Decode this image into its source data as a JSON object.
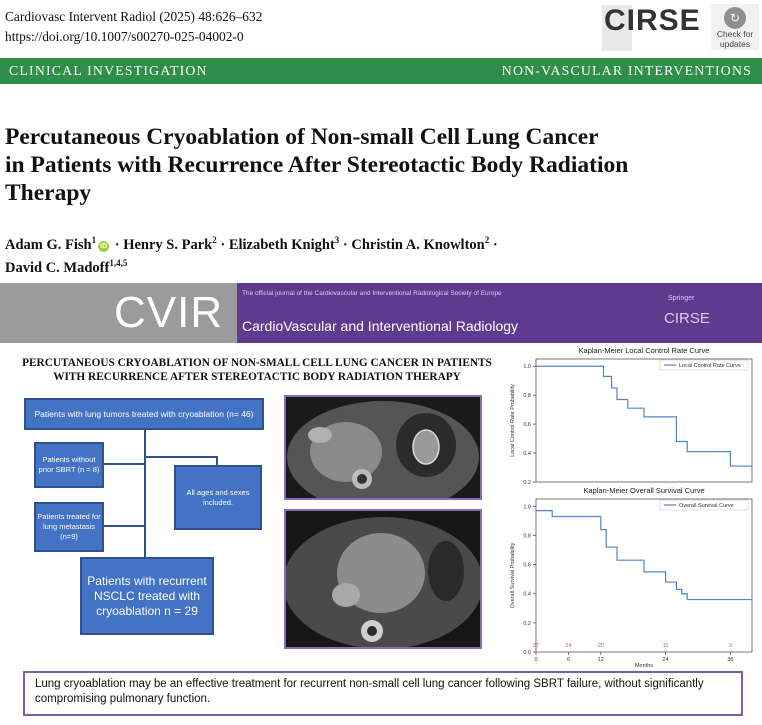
{
  "header": {
    "citation": "Cardiovasc Intervent Radiol (2025) 48:626–632",
    "doi": "https://doi.org/10.1007/s00270-025-04002-0",
    "publisher_logo": "CIRSE",
    "check_badge": {
      "icon": "check-for-updates-icon",
      "line1": "Check for",
      "line2": "updates"
    }
  },
  "section_band": {
    "left": "CLINICAL INVESTIGATION",
    "right": "NON-VASCULAR INTERVENTIONS"
  },
  "paper": {
    "title_line1": "Percutaneous Cryoablation of Non-small Cell Lung Cancer",
    "title_line2": "in Patients with Recurrence After Stereotactic Body Radiation",
    "title_line3": "Therapy",
    "authors": [
      {
        "name": "Adam G. Fish",
        "aff": "1",
        "orcid": true
      },
      {
        "name": "Henry S. Park",
        "aff": "2"
      },
      {
        "name": "Elizabeth Knight",
        "aff": "3"
      },
      {
        "name": "Christin A. Knowlton",
        "aff": "2"
      },
      {
        "name": "David C. Madoff",
        "aff": "1,4,5"
      }
    ],
    "separator": "·"
  },
  "graphical_abstract": {
    "banner": {
      "logo": "CVIR",
      "tagline": "The official journal of the Cardiovascular and Interventional Radiological Society of Europe",
      "journal_name": "CardioVascular and Interventional Radiology",
      "springer": "Springer",
      "cirse": "CIRSE"
    },
    "title_line1": "PERCUTANEOUS CRYOABLATION OF NON-SMALL CELL LUNG CANCER IN PATIENTS",
    "title_line2": "WITH RECURRENCE AFTER STEREOTACTIC BODY RADIATION THERAPY",
    "flow": {
      "top": "Patients with lung tumors treated with cryoablation (n= 46)",
      "no_sbrt": "Patients without prior SBRT (n = 8)",
      "metastasis": "Patients treated for lung metastasis (n=9)",
      "ages": "All ages and sexes included.",
      "final": "Patients with recurrent NSCLC treated with cryoablation n = 29"
    },
    "images": {
      "ct_upper": "CT scan image of lung tumor with ablation zone",
      "ct_lower": "CT scan image of thorax after cryoablation"
    },
    "conclusion": "Lung cryoablation may be an effective treatment for recurrent non-small cell lung cancer following SBRT failure, without significantly compromising pulmonary function."
  },
  "chart_data": [
    {
      "type": "line",
      "title": "Kaplan-Meier Local Control Rate Curve",
      "ylabel": "Local Control Rate Probability",
      "xlabel": "",
      "series": [
        {
          "name": "Local Control Rate Curve",
          "color": "#4f86c6",
          "x": [
            0,
            12,
            12.5,
            14,
            15,
            17,
            20,
            26,
            28,
            33,
            36,
            40
          ],
          "y": [
            1.0,
            1.0,
            0.93,
            0.85,
            0.77,
            0.71,
            0.65,
            0.48,
            0.41,
            0.41,
            0.31,
            0.31
          ]
        }
      ],
      "ylim": [
        0.2,
        1.05
      ],
      "xlim": [
        0,
        40
      ],
      "yticks": [
        "0.2",
        "0.4",
        "0.6",
        "0.8",
        "1.0"
      ],
      "legend": "top-right"
    },
    {
      "type": "line",
      "title": "Kaplan-Meier Overall Survival Curve",
      "ylabel": "Overall Survival Probability",
      "xlabel": "Months",
      "series": [
        {
          "name": "Overall Survival Curve",
          "color": "#4f86c6",
          "x": [
            0,
            3,
            6,
            12,
            13,
            15,
            20,
            24,
            26,
            27,
            28,
            30,
            40
          ],
          "y": [
            0.97,
            0.93,
            0.93,
            0.84,
            0.72,
            0.63,
            0.55,
            0.48,
            0.43,
            0.4,
            0.36,
            0.36,
            0.36
          ]
        }
      ],
      "ylim": [
        0.0,
        1.05
      ],
      "xlim": [
        0,
        40
      ],
      "xticks": [
        "0",
        "6",
        "12",
        "24",
        "36"
      ],
      "yticks": [
        "0.0",
        "0.2",
        "0.4",
        "0.6",
        "0.8",
        "1.0"
      ],
      "at_risk": [
        {
          "x": 0,
          "n": "27"
        },
        {
          "x": 6,
          "n": "24"
        },
        {
          "x": 12,
          "n": "20"
        },
        {
          "x": 24,
          "n": "11"
        },
        {
          "x": 36,
          "n": "3"
        }
      ],
      "at_risk_color": "#d9534f",
      "legend": "top-right"
    }
  ]
}
